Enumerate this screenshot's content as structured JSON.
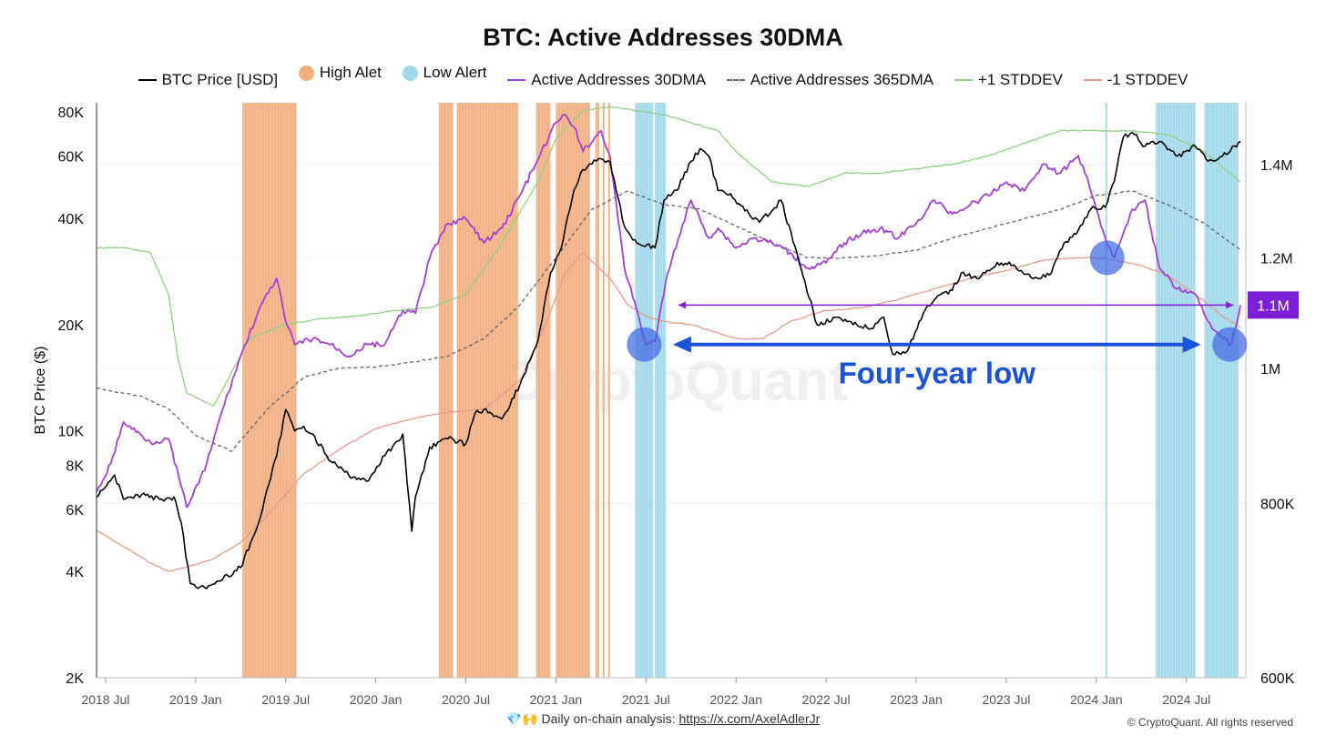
{
  "chart_data": {
    "type": "line",
    "title": "BTC: Active Addresses 30DMA",
    "ylabel_left": "BTC Price ($)",
    "y_left_scale": "log",
    "y_left_range": [
      2000,
      85000
    ],
    "y_left_ticks": [
      {
        "v": 2000,
        "label": "2K"
      },
      {
        "v": 4000,
        "label": "4K"
      },
      {
        "v": 6000,
        "label": "6K"
      },
      {
        "v": 8000,
        "label": "8K"
      },
      {
        "v": 10000,
        "label": "10K"
      },
      {
        "v": 20000,
        "label": "20K"
      },
      {
        "v": 40000,
        "label": "40K"
      },
      {
        "v": 60000,
        "label": "60K"
      },
      {
        "v": 80000,
        "label": "80K"
      }
    ],
    "y_right_scale": "log",
    "y_right_range": [
      600000,
      1550000
    ],
    "y_right_ticks": [
      {
        "v": 600000,
        "label": "600K"
      },
      {
        "v": 800000,
        "label": "800K"
      },
      {
        "v": 1000000,
        "label": "1M"
      },
      {
        "v": 1200000,
        "label": "1.2M"
      },
      {
        "v": 1400000,
        "label": "1.4M"
      }
    ],
    "x_range": [
      2018.45,
      2024.83
    ],
    "x_ticks": [
      {
        "v": 2018.5,
        "label": "2018 Jul"
      },
      {
        "v": 2019.0,
        "label": "2019 Jan"
      },
      {
        "v": 2019.5,
        "label": "2019 Jul"
      },
      {
        "v": 2020.0,
        "label": "2020 Jan"
      },
      {
        "v": 2020.5,
        "label": "2020 Jul"
      },
      {
        "v": 2021.0,
        "label": "2021 Jan"
      },
      {
        "v": 2021.5,
        "label": "2021 Jul"
      },
      {
        "v": 2022.0,
        "label": "2022 Jan"
      },
      {
        "v": 2022.5,
        "label": "2022 Jul"
      },
      {
        "v": 2023.0,
        "label": "2023 Jan"
      },
      {
        "v": 2023.5,
        "label": "2023 Jul"
      },
      {
        "v": 2024.0,
        "label": "2024 Jan"
      },
      {
        "v": 2024.5,
        "label": "2024 Jul"
      }
    ],
    "legend": [
      {
        "label": "BTC Price [USD]",
        "kind": "line",
        "color": "#000000"
      },
      {
        "label": "High Alet",
        "kind": "dot",
        "color": "#f2ae7f"
      },
      {
        "label": "Low Alert",
        "kind": "dot",
        "color": "#9fd8ea"
      },
      {
        "label": "Active Addresses 30DMA",
        "kind": "line",
        "color": "#a53fd6"
      },
      {
        "label": "Active Addresses 365DMA",
        "kind": "dash",
        "color": "#666666"
      },
      {
        "label": "+1 STDDEV",
        "kind": "line",
        "color": "#8fd383"
      },
      {
        "label": "-1 STDDEV",
        "kind": "line",
        "color": "#e99a8e"
      }
    ],
    "series": [
      {
        "name": "BTC Price [USD]",
        "axis": "left",
        "color": "#000000",
        "width": 1.6,
        "x": [
          2018.45,
          2018.55,
          2018.6,
          2018.7,
          2018.8,
          2018.88,
          2018.92,
          2018.97,
          2019.05,
          2019.15,
          2019.25,
          2019.35,
          2019.45,
          2019.5,
          2019.55,
          2019.6,
          2019.65,
          2019.75,
          2019.85,
          2019.95,
          2020.05,
          2020.15,
          2020.2,
          2020.22,
          2020.3,
          2020.4,
          2020.5,
          2020.55,
          2020.6,
          2020.7,
          2020.8,
          2020.9,
          2020.97,
          2021.03,
          2021.1,
          2021.15,
          2021.2,
          2021.25,
          2021.3,
          2021.38,
          2021.45,
          2021.55,
          2021.6,
          2021.67,
          2021.75,
          2021.8,
          2021.85,
          2021.9,
          2021.97,
          2022.05,
          2022.13,
          2022.2,
          2022.25,
          2022.35,
          2022.45,
          2022.55,
          2022.65,
          2022.75,
          2022.82,
          2022.87,
          2022.95,
          2023.05,
          2023.1,
          2023.2,
          2023.25,
          2023.35,
          2023.45,
          2023.55,
          2023.65,
          2023.75,
          2023.82,
          2023.9,
          2023.97,
          2024.05,
          2024.1,
          2024.15,
          2024.2,
          2024.27,
          2024.35,
          2024.45,
          2024.55,
          2024.62,
          2024.7,
          2024.8
        ],
        "y": [
          6500,
          7500,
          6400,
          6600,
          6400,
          6500,
          5500,
          3700,
          3600,
          3800,
          4100,
          5500,
          8500,
          11500,
          10000,
          10300,
          9800,
          8200,
          7500,
          7200,
          8500,
          9800,
          5200,
          6500,
          9000,
          9500,
          9200,
          11200,
          11500,
          10800,
          13500,
          18000,
          28000,
          33000,
          48000,
          55000,
          57000,
          59000,
          58000,
          38000,
          34000,
          33000,
          45000,
          48000,
          58000,
          63000,
          60000,
          48000,
          47000,
          42000,
          39000,
          42000,
          45000,
          30000,
          20000,
          21000,
          20000,
          19500,
          21000,
          16500,
          16800,
          22000,
          23500,
          25000,
          28000,
          27000,
          30000,
          29300,
          27000,
          28000,
          34000,
          37000,
          42500,
          43000,
          51000,
          68000,
          70000,
          64000,
          66000,
          60000,
          64000,
          58000,
          60000,
          66000
        ]
      },
      {
        "name": "Active Addresses 30DMA",
        "axis": "right",
        "color": "#a53fd6",
        "width": 1.8,
        "x": [
          2018.45,
          2018.53,
          2018.6,
          2018.75,
          2018.85,
          2018.95,
          2019.05,
          2019.15,
          2019.25,
          2019.35,
          2019.45,
          2019.5,
          2019.55,
          2019.65,
          2019.75,
          2019.85,
          2019.95,
          2020.05,
          2020.15,
          2020.22,
          2020.3,
          2020.4,
          2020.5,
          2020.6,
          2020.7,
          2020.8,
          2020.9,
          2021.0,
          2021.05,
          2021.1,
          2021.15,
          2021.25,
          2021.3,
          2021.38,
          2021.45,
          2021.5,
          2021.55,
          2021.62,
          2021.68,
          2021.75,
          2021.85,
          2021.9,
          2022.0,
          2022.1,
          2022.2,
          2022.3,
          2022.4,
          2022.5,
          2022.6,
          2022.7,
          2022.8,
          2022.9,
          2023.0,
          2023.1,
          2023.2,
          2023.3,
          2023.4,
          2023.5,
          2023.6,
          2023.7,
          2023.8,
          2023.9,
          2023.95,
          2024.0,
          2024.05,
          2024.1,
          2024.15,
          2024.2,
          2024.27,
          2024.35,
          2024.45,
          2024.55,
          2024.62,
          2024.7,
          2024.75,
          2024.8
        ],
        "y": [
          815000,
          855000,
          915000,
          885000,
          890000,
          795000,
          845000,
          935000,
          1020000,
          1100000,
          1160000,
          1080000,
          1040000,
          1050000,
          1040000,
          1020000,
          1040000,
          1040000,
          1100000,
          1095000,
          1200000,
          1270000,
          1280000,
          1230000,
          1260000,
          1330000,
          1410000,
          1500000,
          1520000,
          1490000,
          1430000,
          1480000,
          1420000,
          1180000,
          1100000,
          1040000,
          1045000,
          1170000,
          1240000,
          1320000,
          1240000,
          1260000,
          1220000,
          1240000,
          1230000,
          1210000,
          1180000,
          1190000,
          1230000,
          1250000,
          1260000,
          1240000,
          1270000,
          1320000,
          1290000,
          1310000,
          1330000,
          1360000,
          1340000,
          1400000,
          1380000,
          1420000,
          1370000,
          1300000,
          1240000,
          1200000,
          1250000,
          1300000,
          1320000,
          1180000,
          1140000,
          1130000,
          1080000,
          1050000,
          1040000,
          1110000
        ]
      },
      {
        "name": "Active Addresses 365DMA",
        "axis": "right",
        "color": "#666666",
        "width": 1.3,
        "dash": "4 3",
        "x": [
          2018.45,
          2018.55,
          2018.7,
          2018.85,
          2019.0,
          2019.2,
          2019.4,
          2019.6,
          2019.8,
          2020.0,
          2020.2,
          2020.4,
          2020.6,
          2020.8,
          2021.0,
          2021.2,
          2021.4,
          2021.6,
          2021.8,
          2022.0,
          2022.2,
          2022.4,
          2022.6,
          2022.8,
          2023.0,
          2023.2,
          2023.4,
          2023.6,
          2023.8,
          2024.0,
          2024.2,
          2024.4,
          2024.6,
          2024.8
        ],
        "y": [
          968000,
          962000,
          955000,
          935000,
          895000,
          872000,
          935000,
          985000,
          1000000,
          1002000,
          1010000,
          1020000,
          1050000,
          1110000,
          1200000,
          1300000,
          1340000,
          1310000,
          1300000,
          1265000,
          1230000,
          1200000,
          1200000,
          1205000,
          1215000,
          1240000,
          1260000,
          1280000,
          1300000,
          1330000,
          1340000,
          1310000,
          1270000,
          1215000
        ]
      },
      {
        "name": "+1 STDDEV",
        "axis": "right",
        "color": "#8fd383",
        "width": 1.3,
        "x": [
          2018.45,
          2018.6,
          2018.75,
          2018.85,
          2018.9,
          2018.95,
          2019.1,
          2019.3,
          2019.5,
          2019.7,
          2019.9,
          2020.1,
          2020.3,
          2020.5,
          2020.7,
          2020.9,
          2021.0,
          2021.15,
          2021.3,
          2021.45,
          2021.6,
          2021.75,
          2021.9,
          2022.0,
          2022.2,
          2022.4,
          2022.6,
          2022.8,
          2023.0,
          2023.2,
          2023.4,
          2023.6,
          2023.8,
          2024.0,
          2024.2,
          2024.4,
          2024.6,
          2024.8
        ],
        "y": [
          1220000,
          1220000,
          1210000,
          1130000,
          1020000,
          960000,
          940000,
          1050000,
          1075000,
          1085000,
          1090000,
          1100000,
          1105000,
          1130000,
          1230000,
          1360000,
          1460000,
          1530000,
          1540000,
          1530000,
          1520000,
          1500000,
          1480000,
          1430000,
          1360000,
          1350000,
          1380000,
          1380000,
          1390000,
          1400000,
          1420000,
          1450000,
          1480000,
          1480000,
          1480000,
          1470000,
          1430000,
          1360000
        ]
      },
      {
        "name": "-1 STDDEV",
        "axis": "right",
        "color": "#e99a8e",
        "width": 1.3,
        "x": [
          2018.45,
          2018.6,
          2018.75,
          2018.85,
          2018.95,
          2019.1,
          2019.25,
          2019.4,
          2019.6,
          2019.8,
          2020.0,
          2020.2,
          2020.4,
          2020.6,
          2020.8,
          2020.95,
          2021.05,
          2021.15,
          2021.3,
          2021.4,
          2021.5,
          2021.6,
          2021.75,
          2021.9,
          2022.0,
          2022.15,
          2022.3,
          2022.5,
          2022.7,
          2022.9,
          2023.1,
          2023.3,
          2023.5,
          2023.7,
          2023.9,
          2024.0,
          2024.1,
          2024.25,
          2024.4,
          2024.55,
          2024.7,
          2024.8
        ],
        "y": [
          765000,
          745000,
          725000,
          715000,
          720000,
          730000,
          750000,
          785000,
          840000,
          875000,
          905000,
          920000,
          930000,
          935000,
          980000,
          1080000,
          1170000,
          1210000,
          1160000,
          1110000,
          1090000,
          1080000,
          1075000,
          1060000,
          1050000,
          1050000,
          1080000,
          1100000,
          1105000,
          1120000,
          1140000,
          1160000,
          1175000,
          1195000,
          1200000,
          1200000,
          1195000,
          1185000,
          1165000,
          1130000,
          1090000,
          1070000
        ]
      }
    ],
    "high_alert_bands": [
      [
        2019.26,
        2019.56
      ],
      [
        2020.35,
        2020.43
      ],
      [
        2020.45,
        2020.79
      ],
      [
        2020.89,
        2020.97
      ],
      [
        2021.0,
        2021.19
      ],
      [
        2021.22,
        2021.24
      ],
      [
        2021.26,
        2021.27
      ],
      [
        2021.29,
        2021.3
      ]
    ],
    "low_alert_bands": [
      [
        2021.44,
        2021.54
      ],
      [
        2021.55,
        2021.61
      ],
      [
        2024.05,
        2024.06
      ],
      [
        2024.33,
        2024.55
      ],
      [
        2024.6,
        2024.79
      ]
    ],
    "circles": [
      [
        2021.49,
        1040000
      ],
      [
        2024.06,
        1200000
      ],
      [
        2024.74,
        1040000
      ]
    ],
    "threshold_line": {
      "y": 1110000,
      "x0": 2021.68,
      "x1": 2024.76,
      "label": "1.1M",
      "color": "#7c1fd6"
    },
    "low_arrow": {
      "y": 1040000,
      "x0": 2021.68,
      "x1": 2024.55,
      "color": "#1a53d8"
    },
    "annotation": {
      "text": "Four-year low",
      "color": "#1a53d8"
    },
    "watermark": "CryptoQuant"
  },
  "footer": {
    "emoji": "💎🙌",
    "text": "Daily on-chain analysis:",
    "link": "https://x.com/AxelAdlerJr",
    "copyright": "© CryptoQuant. All rights reserved"
  }
}
